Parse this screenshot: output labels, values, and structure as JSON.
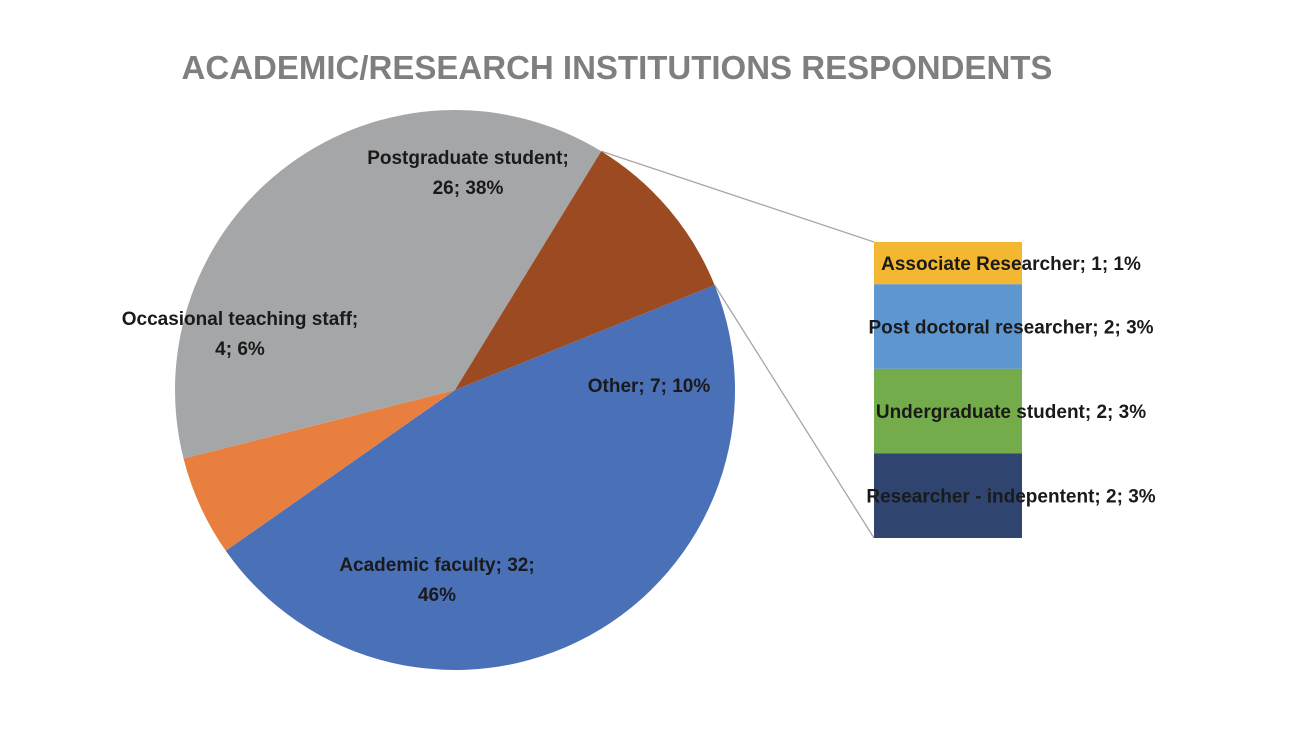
{
  "chart_data": {
    "type": "pie",
    "title": "ACADEMIC/RESEARCH INSTITUTIONS RESPONDENTS",
    "slices": [
      {
        "name": "Academic faculty",
        "value": 32,
        "percent": "46%",
        "color": "#4a70b8",
        "label_lines": [
          "Academic faculty; 32;",
          "46%"
        ]
      },
      {
        "name": "Occasional teaching staff",
        "value": 4,
        "percent": "6%",
        "color": "#e97f3e",
        "label_lines": [
          "Occasional teaching staff;",
          "4; 6%"
        ]
      },
      {
        "name": "Postgraduate student",
        "value": 26,
        "percent": "38%",
        "color": "#a5a6a8",
        "label_lines": [
          "Postgraduate student;",
          "26; 38%"
        ]
      },
      {
        "name": "Other",
        "value": 7,
        "percent": "10%",
        "color": "#9c4a21",
        "label_lines": [
          "Other; 7; 10%"
        ]
      }
    ],
    "breakdown": {
      "of": "Other",
      "items": [
        {
          "name": "Associate Researcher",
          "value": 1,
          "percent": "1%",
          "color": "#f4b731",
          "label": "Associate Researcher; 1; 1%"
        },
        {
          "name": "Post doctoral researcher",
          "value": 2,
          "percent": "3%",
          "color": "#5e97d0",
          "label": "Post doctoral researcher; 2; 3%"
        },
        {
          "name": "Undergraduate student",
          "value": 2,
          "percent": "3%",
          "color": "#74ac4c",
          "label": "Undergraduate student; 2; 3%"
        },
        {
          "name": "Researcher - indepentent",
          "value": 2,
          "percent": "3%",
          "color": "#2f4570",
          "label": "Researcher - indepentent; 2; 3%"
        }
      ]
    }
  }
}
